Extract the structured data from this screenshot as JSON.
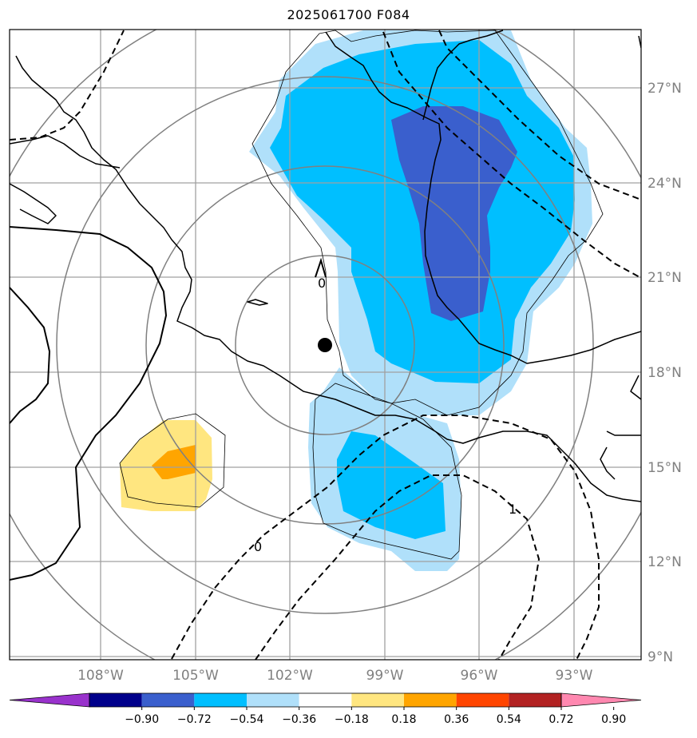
{
  "title": "2025061700 F084",
  "lat_labels": [
    "27°N",
    "24°N",
    "21°N",
    "18°N",
    "15°N",
    "12°N",
    "9°N"
  ],
  "lon_labels": [
    "108°W",
    "105°W",
    "102°W",
    "99°W",
    "96°W",
    "93°W"
  ],
  "colorbar": {
    "labels": [
      "−0.90",
      "−0.72",
      "−0.54",
      "−0.36",
      "−0.18",
      "0.18",
      "0.36",
      "0.54",
      "0.72",
      "0.90"
    ],
    "colors": [
      "#9932cc",
      "#00008b",
      "#3a5fcd",
      "#00bfff",
      "#b0e0fa",
      "#ffffff",
      "#ffe680",
      "#ffa500",
      "#ff4500",
      "#b22222",
      "#ff88b0"
    ]
  },
  "contour_labels": [
    "0",
    "0",
    "1"
  ],
  "colors": {
    "grid": "#a0a0a0",
    "range_ring": "#808080",
    "coast": "#000000"
  },
  "marker": "center-point"
}
